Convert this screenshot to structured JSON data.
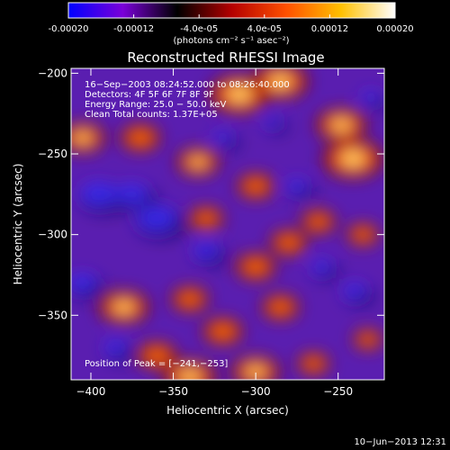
{
  "colorbar": {
    "tick_labels": [
      "-0.00020",
      "-0.00012",
      "-4.0e-05",
      "4.0e-05",
      "0.00012",
      "0.00020"
    ],
    "tick_values": [
      -0.0002,
      -0.00012,
      -4e-05,
      4e-05,
      0.00012,
      0.0002
    ],
    "range": [
      -0.0002,
      0.0002
    ],
    "units": "(photons cm⁻² s⁻¹ asec⁻²)",
    "colors": [
      "#0000ff",
      "#7a00d8",
      "#000000",
      "#b40000",
      "#ff5000",
      "#ffc000",
      "#ffffff"
    ]
  },
  "chart_data": {
    "type": "heatmap",
    "title": "Reconstructed RHESSI Image",
    "xlabel": "Heliocentric X (arcsec)",
    "ylabel": "Heliocentric Y (arcsec)",
    "xlim": [
      -412,
      -222
    ],
    "ylim": [
      -390,
      -197
    ],
    "x_ticks": [
      -400,
      -350,
      -300,
      -250
    ],
    "y_ticks": [
      -200,
      -250,
      -300,
      -350
    ],
    "x_tick_labels": [
      "−400",
      "−350",
      "−300",
      "−250"
    ],
    "y_tick_labels": [
      "−200",
      "−250",
      "−300",
      "−350"
    ],
    "annotations": [
      "16−Sep−2003 08:24:52.000 to 08:26:40.000",
      "Detectors: 4F 5F 6F 7F 8F 9F",
      "Energy Range: 25.0 − 50.0 keV",
      "Clean    Total counts: 1.37E+05"
    ],
    "peak_label": "Position of Peak = [−241,−253]",
    "peak": [
      -241,
      -253
    ],
    "hot_spots": [
      {
        "x": -310,
        "y": -213,
        "v": 1.0
      },
      {
        "x": -285,
        "y": -205,
        "v": 0.9
      },
      {
        "x": -241,
        "y": -253,
        "v": 1.0
      },
      {
        "x": -248,
        "y": -232,
        "v": 0.8
      },
      {
        "x": -405,
        "y": -240,
        "v": 0.7
      },
      {
        "x": -370,
        "y": -240,
        "v": 0.6
      },
      {
        "x": -335,
        "y": -255,
        "v": 0.65
      },
      {
        "x": -300,
        "y": -270,
        "v": 0.55
      },
      {
        "x": -330,
        "y": -290,
        "v": 0.5
      },
      {
        "x": -280,
        "y": -305,
        "v": 0.55
      },
      {
        "x": -262,
        "y": -292,
        "v": 0.5
      },
      {
        "x": -300,
        "y": -320,
        "v": 0.6
      },
      {
        "x": -235,
        "y": -300,
        "v": 0.45
      },
      {
        "x": -285,
        "y": -345,
        "v": 0.55
      },
      {
        "x": -320,
        "y": -360,
        "v": 0.6
      },
      {
        "x": -340,
        "y": -340,
        "v": 0.55
      },
      {
        "x": -380,
        "y": -345,
        "v": 0.8
      },
      {
        "x": -360,
        "y": -375,
        "v": 0.6
      },
      {
        "x": -340,
        "y": -388,
        "v": 0.85
      },
      {
        "x": -300,
        "y": -385,
        "v": 0.75
      },
      {
        "x": -265,
        "y": -380,
        "v": 0.45
      },
      {
        "x": -232,
        "y": -365,
        "v": 0.4
      }
    ],
    "cold_spots": [
      {
        "x": -395,
        "y": -275,
        "v": 0.8
      },
      {
        "x": -360,
        "y": -290,
        "v": 0.85
      },
      {
        "x": -375,
        "y": -275,
        "v": 0.7
      },
      {
        "x": -405,
        "y": -330,
        "v": 0.6
      },
      {
        "x": -385,
        "y": -370,
        "v": 0.5
      },
      {
        "x": -330,
        "y": -310,
        "v": 0.55
      },
      {
        "x": -320,
        "y": -240,
        "v": 0.4
      },
      {
        "x": -290,
        "y": -230,
        "v": 0.35
      },
      {
        "x": -275,
        "y": -270,
        "v": 0.45
      },
      {
        "x": -260,
        "y": -320,
        "v": 0.45
      },
      {
        "x": -240,
        "y": -335,
        "v": 0.5
      },
      {
        "x": -230,
        "y": -215,
        "v": 0.4
      }
    ]
  },
  "footer": {
    "timestamp": "10−Jun−2013 12:31"
  }
}
